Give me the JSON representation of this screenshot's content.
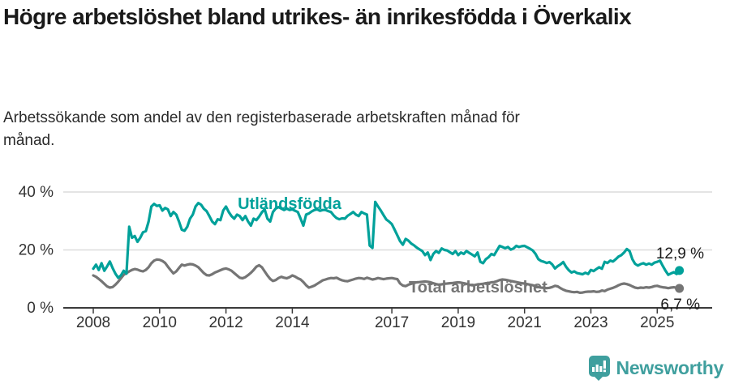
{
  "title": "Högre arbetslöshet bland utrikes- än inrikesfödda i Överkalix",
  "subtitle": "Arbetssökande som andel av den registerbaserade arbetskraften månad för månad.",
  "branding": {
    "name": "Newsworthy"
  },
  "colors": {
    "foreign_born": "#00a19a",
    "total": "#757575",
    "grid": "#dcdcdc",
    "axis": "#3a3a3a",
    "text": "#333333",
    "value_text": "#1a1a1a",
    "brand": "#3f9f9e",
    "background": "#ffffff"
  },
  "chart_data": {
    "type": "line",
    "title": "Högre arbetslöshet bland utrikes- än inrikesfödda i Överkalix",
    "subtitle": "Arbetssökande som andel av den registerbaserade arbetskraften månad för månad.",
    "x_unit": "month",
    "x_start": "2008-01",
    "x_end": "2025-09",
    "x_ticks": [
      2008,
      2010,
      2012,
      2014,
      2017,
      2019,
      2021,
      2023,
      2025
    ],
    "y_ticks": [
      {
        "value": 0,
        "label": "0 %"
      },
      {
        "value": 20,
        "label": "20 %"
      },
      {
        "value": 40,
        "label": "40 %"
      }
    ],
    "ylim": [
      0,
      43
    ],
    "grid": true,
    "legend_position": "inline-labels",
    "series": [
      {
        "id": "utlandsfodda",
        "name": "Utländsfödda",
        "color": "#00a19a",
        "end_value": 12.9,
        "end_label": "12,9 %",
        "values": [
          13.5,
          14.9,
          13.1,
          15.4,
          12.8,
          14.3,
          16.0,
          13.7,
          11.8,
          10.4,
          11.2,
          12.8,
          11.8,
          28.0,
          24.2,
          24.8,
          22.8,
          24.2,
          26.1,
          26.5,
          29.8,
          35.0,
          35.9,
          35.2,
          35.4,
          33.6,
          34.5,
          34.0,
          31.7,
          33.1,
          32.2,
          29.8,
          27.0,
          26.6,
          28.0,
          30.8,
          32.2,
          35.0,
          36.2,
          35.6,
          34.2,
          33.4,
          31.7,
          29.8,
          28.9,
          30.6,
          30.3,
          33.6,
          35.0,
          33.1,
          31.7,
          30.8,
          32.2,
          31.7,
          30.3,
          31.7,
          29.8,
          28.4,
          30.8,
          30.3,
          31.5,
          33.0,
          34.0,
          30.8,
          29.8,
          33.1,
          34.3,
          34.8,
          34.3,
          33.8,
          34.3,
          33.8,
          34.0,
          33.5,
          33.1,
          30.8,
          28.4,
          32.2,
          32.6,
          33.3,
          33.8,
          34.0,
          33.5,
          33.8,
          33.8,
          33.4,
          33.1,
          31.9,
          31.0,
          30.6,
          30.9,
          30.8,
          31.8,
          32.4,
          33.1,
          32.2,
          31.7,
          33.1,
          32.6,
          32.2,
          21.5,
          20.7,
          36.6,
          35.0,
          33.6,
          32.0,
          30.5,
          29.8,
          28.9,
          27.0,
          25.0,
          23.0,
          21.8,
          23.8,
          23.2,
          22.2,
          21.6,
          20.8,
          20.2,
          19.6,
          18.2,
          19.1,
          16.5,
          18.6,
          19.6,
          19.0,
          20.5,
          20.0,
          19.8,
          19.2,
          18.6,
          19.6,
          18.2,
          19.1,
          18.6,
          19.6,
          19.0,
          18.4,
          17.8,
          19.1,
          15.9,
          15.4,
          16.8,
          17.5,
          18.6,
          18.2,
          19.8,
          21.4,
          21.0,
          20.6,
          21.0,
          20.1,
          20.5,
          21.4,
          21.0,
          21.3,
          21.4,
          20.9,
          20.4,
          19.8,
          18.6,
          16.8,
          16.2,
          15.9,
          15.5,
          15.8,
          15.0,
          13.6,
          14.4,
          15.0,
          15.8,
          14.2,
          13.0,
          12.2,
          12.6,
          12.0,
          11.8,
          11.6,
          12.1,
          11.7,
          13.1,
          12.7,
          13.4,
          14.0,
          13.5,
          15.9,
          15.5,
          16.3,
          16.0,
          16.8,
          17.7,
          18.2,
          19.1,
          20.3,
          19.6,
          16.8,
          15.2,
          14.6,
          15.1,
          15.4,
          14.9,
          15.3,
          14.9,
          15.6,
          15.9,
          16.3,
          14.5,
          12.8,
          11.4,
          11.9,
          12.3,
          11.7,
          12.9
        ]
      },
      {
        "id": "total",
        "name": "Total arbetslöshet",
        "color": "#757575",
        "end_value": 6.7,
        "end_label": "6,7 %",
        "values": [
          11.2,
          10.7,
          10.0,
          9.2,
          8.3,
          7.4,
          7.0,
          7.2,
          8.0,
          9.0,
          10.2,
          11.4,
          12.0,
          12.6,
          13.1,
          13.4,
          13.2,
          12.8,
          12.6,
          13.1,
          14.0,
          15.4,
          16.3,
          16.7,
          16.6,
          16.2,
          15.5,
          14.2,
          13.0,
          11.9,
          12.6,
          13.8,
          14.9,
          14.6,
          14.9,
          15.1,
          15.0,
          14.6,
          14.0,
          13.0,
          12.0,
          11.3,
          11.2,
          11.6,
          12.2,
          12.6,
          13.0,
          13.4,
          13.6,
          13.3,
          12.8,
          12.0,
          11.2,
          10.4,
          10.2,
          10.6,
          11.3,
          12.1,
          13.1,
          14.2,
          14.7,
          14.0,
          12.6,
          11.2,
          10.0,
          9.3,
          9.6,
          10.3,
          10.7,
          10.4,
          10.2,
          10.6,
          11.2,
          10.8,
          10.2,
          9.8,
          8.9,
          7.8,
          7.0,
          7.3,
          7.7,
          8.3,
          8.9,
          9.5,
          9.8,
          10.1,
          10.3,
          10.2,
          10.4,
          9.9,
          9.5,
          9.3,
          9.2,
          9.5,
          9.8,
          10.1,
          10.3,
          10.2,
          10.0,
          10.4,
          10.1,
          9.8,
          10.0,
          10.3,
          10.1,
          9.9,
          10.1,
          10.2,
          10.3,
          10.1,
          9.9,
          8.4,
          7.7,
          7.5,
          8.0,
          8.3,
          8.6,
          8.8,
          8.9,
          9.0,
          9.1,
          9.0,
          8.8,
          8.5,
          8.2,
          8.0,
          8.1,
          8.3,
          8.4,
          8.5,
          8.6,
          8.7,
          8.8,
          8.7,
          8.5,
          8.3,
          8.0,
          7.8,
          7.9,
          8.1,
          8.2,
          8.3,
          8.5,
          8.6,
          8.8,
          8.9,
          9.2,
          9.6,
          9.8,
          9.7,
          9.5,
          9.3,
          9.1,
          8.9,
          8.7,
          8.5,
          8.4,
          8.2,
          8.0,
          7.8,
          7.5,
          7.2,
          7.0,
          6.9,
          6.8,
          6.9,
          7.2,
          7.6,
          7.4,
          6.8,
          6.3,
          5.9,
          5.7,
          5.5,
          5.4,
          5.5,
          5.2,
          5.3,
          5.5,
          5.6,
          5.6,
          5.7,
          5.5,
          5.6,
          6.0,
          5.8,
          6.3,
          6.6,
          6.9,
          7.3,
          7.8,
          8.2,
          8.4,
          8.2,
          7.9,
          7.4,
          7.0,
          6.8,
          7.0,
          6.9,
          7.1,
          7.0,
          7.2,
          7.5,
          7.6,
          7.3,
          7.1,
          7.0,
          6.8,
          7.0,
          7.1,
          6.9,
          6.7
        ]
      }
    ]
  }
}
